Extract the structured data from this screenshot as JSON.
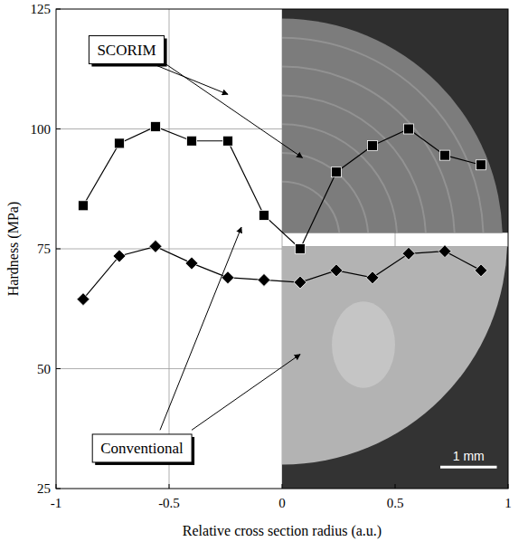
{
  "chart_data": {
    "type": "line",
    "x_label": "Relative cross section radius (a.u.)",
    "y_label": "Hardness (MPa)",
    "x": [
      -0.88,
      -0.72,
      -0.56,
      -0.4,
      -0.24,
      -0.08,
      0.08,
      0.24,
      0.4,
      0.56,
      0.72,
      0.88
    ],
    "series": [
      {
        "name": "SCORIM",
        "color": "#000000",
        "marker": "square",
        "line_style": "solid",
        "values": [
          84,
          97,
          100.5,
          97.5,
          97.5,
          82,
          75,
          91,
          96.5,
          100,
          94.5,
          92.5
        ]
      },
      {
        "name": "Conventional",
        "color": "#000000",
        "marker": "diamond",
        "line_style": "solid",
        "values": [
          64.5,
          73.5,
          75.5,
          72,
          69,
          68.5,
          68,
          70.5,
          69,
          74,
          74.5,
          70.5
        ]
      }
    ],
    "annotations": [
      "1 mm"
    ],
    "xlim": [
      -1,
      1
    ],
    "xticks": [
      -1,
      -0.5,
      0,
      0.5,
      1
    ],
    "ylim": [
      25,
      125
    ],
    "yticks": [
      25,
      50,
      75,
      100,
      125
    ],
    "grid": true
  }
}
